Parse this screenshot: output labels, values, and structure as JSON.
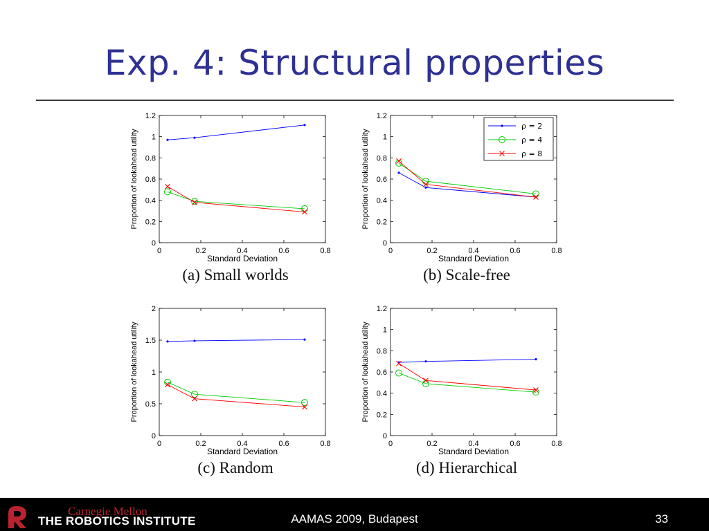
{
  "slide": {
    "title": "Exp. 4: Structural properties",
    "footer_conference": "AAMAS 2009, Budapest",
    "page_number": "33",
    "logo_top": "Carnegie Mellon",
    "logo_bottom": "THE ROBOTICS INSTITUTE"
  },
  "colors": {
    "title": "#2e3192",
    "rho2": "#0000ff",
    "rho4": "#00cc00",
    "rho8": "#ff0000"
  },
  "chart_data": [
    {
      "type": "line",
      "caption": "(a) Small worlds",
      "xlabel": "Standard Deviation",
      "ylabel": "Proportion of lookahead utility",
      "xlim": [
        0,
        0.8
      ],
      "ylim": [
        0,
        1.2
      ],
      "xticks": [
        "0",
        "0.2",
        "0.4",
        "0.6",
        "0.8"
      ],
      "yticks": [
        "0",
        "0.2",
        "0.4",
        "0.6",
        "0.8",
        "1",
        "1.2"
      ],
      "x": [
        0.04,
        0.17,
        0.7
      ],
      "series": [
        {
          "name": "ρ = 2",
          "values": [
            0.97,
            0.99,
            1.11
          ]
        },
        {
          "name": "ρ = 4",
          "values": [
            0.48,
            0.39,
            0.32
          ]
        },
        {
          "name": "ρ = 8",
          "values": [
            0.53,
            0.38,
            0.29
          ]
        }
      ],
      "legend": false
    },
    {
      "type": "line",
      "caption": "(b) Scale-free",
      "xlabel": "Standard Deviation",
      "ylabel": "Proportion of lookahead utility",
      "xlim": [
        0,
        0.8
      ],
      "ylim": [
        0,
        1.2
      ],
      "xticks": [
        "0",
        "0.2",
        "0.4",
        "0.6",
        "0.8"
      ],
      "yticks": [
        "0",
        "0.2",
        "0.4",
        "0.6",
        "0.8",
        "1",
        "1.2"
      ],
      "x": [
        0.04,
        0.17,
        0.7
      ],
      "series": [
        {
          "name": "ρ = 2",
          "values": [
            0.66,
            0.52,
            0.43
          ]
        },
        {
          "name": "ρ = 4",
          "values": [
            0.75,
            0.58,
            0.46
          ]
        },
        {
          "name": "ρ = 8",
          "values": [
            0.77,
            0.55,
            0.43
          ]
        }
      ],
      "legend": true,
      "legend_position": "top-right"
    },
    {
      "type": "line",
      "caption": "(c) Random",
      "xlabel": "Standard Deviation",
      "ylabel": "Proportion of lookahead utility",
      "xlim": [
        0,
        0.8
      ],
      "ylim": [
        0,
        2
      ],
      "xticks": [
        "0",
        "0.2",
        "0.4",
        "0.6",
        "0.8"
      ],
      "yticks": [
        "0",
        "0.5",
        "1",
        "1.5",
        "2"
      ],
      "x": [
        0.04,
        0.17,
        0.7
      ],
      "series": [
        {
          "name": "ρ = 2",
          "values": [
            1.48,
            1.49,
            1.51
          ]
        },
        {
          "name": "ρ = 4",
          "values": [
            0.84,
            0.65,
            0.52
          ]
        },
        {
          "name": "ρ = 8",
          "values": [
            0.8,
            0.58,
            0.45
          ]
        }
      ],
      "legend": false
    },
    {
      "type": "line",
      "caption": "(d) Hierarchical",
      "xlabel": "Standard Deviation",
      "ylabel": "Proportion of lookahead utility",
      "xlim": [
        0,
        0.8
      ],
      "ylim": [
        0,
        1.2
      ],
      "xticks": [
        "0",
        "0.2",
        "0.4",
        "0.6",
        "0.8"
      ],
      "yticks": [
        "0",
        "0.2",
        "0.4",
        "0.6",
        "0.8",
        "1",
        "1.2"
      ],
      "x": [
        0.04,
        0.17,
        0.7
      ],
      "series": [
        {
          "name": "ρ = 2",
          "values": [
            0.69,
            0.7,
            0.72
          ]
        },
        {
          "name": "ρ = 4",
          "values": [
            0.59,
            0.49,
            0.41
          ]
        },
        {
          "name": "ρ = 8",
          "values": [
            0.68,
            0.52,
            0.43
          ]
        }
      ],
      "legend": false
    }
  ]
}
